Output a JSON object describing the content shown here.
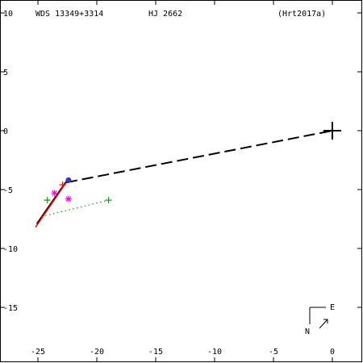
{
  "header": {
    "wds_id": "WDS 13349+3314",
    "discoverer": "HJ 2662",
    "reference": "(Hrt2017a)"
  },
  "compass": {
    "north": "N",
    "east": "E"
  },
  "chart_data": {
    "type": "scatter",
    "title": "",
    "xlabel": "",
    "ylabel": "",
    "xlim": [
      -27.5,
      2.5
    ],
    "ylim": [
      -19.3,
      11.0
    ],
    "x_ticks": [
      -25,
      -20,
      -15,
      -10,
      -5,
      0
    ],
    "x_tick_labels": [
      "-25",
      "-20",
      "-15",
      "-10",
      "-5",
      "0"
    ],
    "y_ticks": [
      10,
      5,
      0,
      -5,
      -10,
      -15
    ],
    "y_tick_labels": [
      "10",
      "5",
      "0",
      "-5",
      "-10",
      "-15"
    ],
    "grid": false,
    "primary_star": {
      "x": 0,
      "y": 0,
      "marker": "large-cross",
      "color": "#000000"
    },
    "series": [
      {
        "marker": "solid-line",
        "color": "#000000",
        "points": [
          [
            -25.1,
            -7.9
          ],
          [
            -22.6,
            -4.3
          ]
        ]
      },
      {
        "marker": "solid-line",
        "color": "#ff0000",
        "points": [
          [
            -25.2,
            -8.2
          ],
          [
            -22.6,
            -4.4
          ]
        ]
      },
      {
        "marker": "long-dashed-line",
        "color": "#000000",
        "points": [
          [
            -22.6,
            -4.4
          ],
          [
            0,
            0
          ]
        ]
      },
      {
        "marker": "dotted-line",
        "color": "#00aa00",
        "points": [
          [
            -24.7,
            -7.3
          ],
          [
            -19.0,
            -5.9
          ]
        ]
      },
      {
        "marker": "plus",
        "color": "#00aa00",
        "points": [
          [
            -24.2,
            -5.9
          ],
          [
            -19.0,
            -5.9
          ]
        ]
      },
      {
        "marker": "asterisk",
        "color": "#ff00ff",
        "points": [
          [
            -22.4,
            -5.8
          ],
          [
            -23.6,
            -5.3
          ]
        ]
      },
      {
        "marker": "plus",
        "color": "#ff0000",
        "points": [
          [
            -22.9,
            -4.6
          ]
        ]
      },
      {
        "marker": "filled-circle",
        "color": "#3333cc",
        "points": [
          [
            -22.4,
            -4.2
          ]
        ]
      }
    ]
  }
}
